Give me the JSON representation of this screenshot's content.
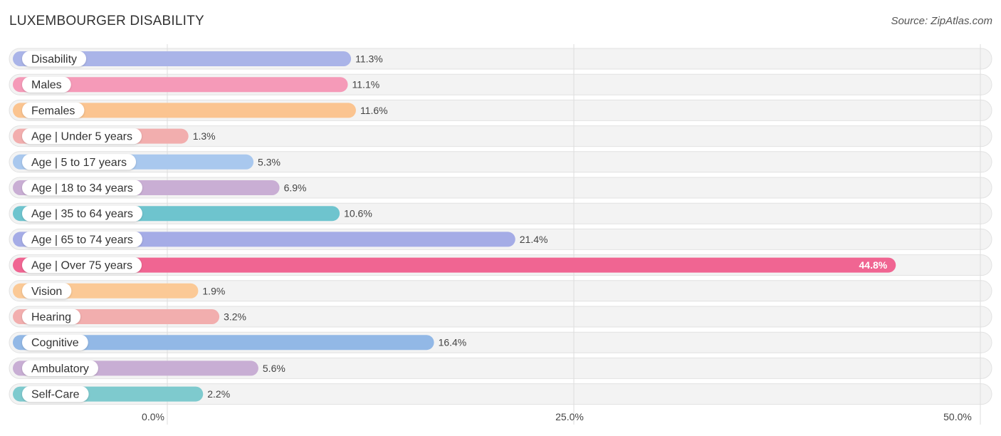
{
  "header": {
    "title": "LUXEMBOURGER DISABILITY",
    "source": "Source: ZipAtlas.com"
  },
  "chart_data": {
    "type": "bar",
    "orientation": "horizontal",
    "title": "LUXEMBOURGER DISABILITY",
    "xlabel": "",
    "ylabel": "",
    "xlim": [
      0,
      50
    ],
    "ticks": [
      {
        "value": 0,
        "label": "0.0%"
      },
      {
        "value": 25,
        "label": "25.0%"
      },
      {
        "value": 50,
        "label": "50.0%"
      }
    ],
    "grid": true,
    "categories": [
      "Disability",
      "Males",
      "Females",
      "Age | Under 5 years",
      "Age | 5 to 17 years",
      "Age | 18 to 34 years",
      "Age | 35 to 64 years",
      "Age | 65 to 74 years",
      "Age | Over 75 years",
      "Vision",
      "Hearing",
      "Cognitive",
      "Ambulatory",
      "Self-Care"
    ],
    "values": [
      11.3,
      11.1,
      11.6,
      1.3,
      5.3,
      6.9,
      10.6,
      21.4,
      44.8,
      1.9,
      3.2,
      16.4,
      5.6,
      2.2
    ],
    "value_labels": [
      "11.3%",
      "11.1%",
      "11.6%",
      "1.3%",
      "5.3%",
      "6.9%",
      "10.6%",
      "21.4%",
      "44.8%",
      "1.9%",
      "3.2%",
      "16.4%",
      "5.6%",
      "2.2%"
    ],
    "colors": [
      "#aab4e8",
      "#f59ab8",
      "#fbc490",
      "#f2aeae",
      "#a9c8ee",
      "#c9aed4",
      "#6ec4ce",
      "#a5ace6",
      "#f06592",
      "#fbc996",
      "#f2aeae",
      "#92b8e6",
      "#c8aed4",
      "#7ecace"
    ]
  }
}
